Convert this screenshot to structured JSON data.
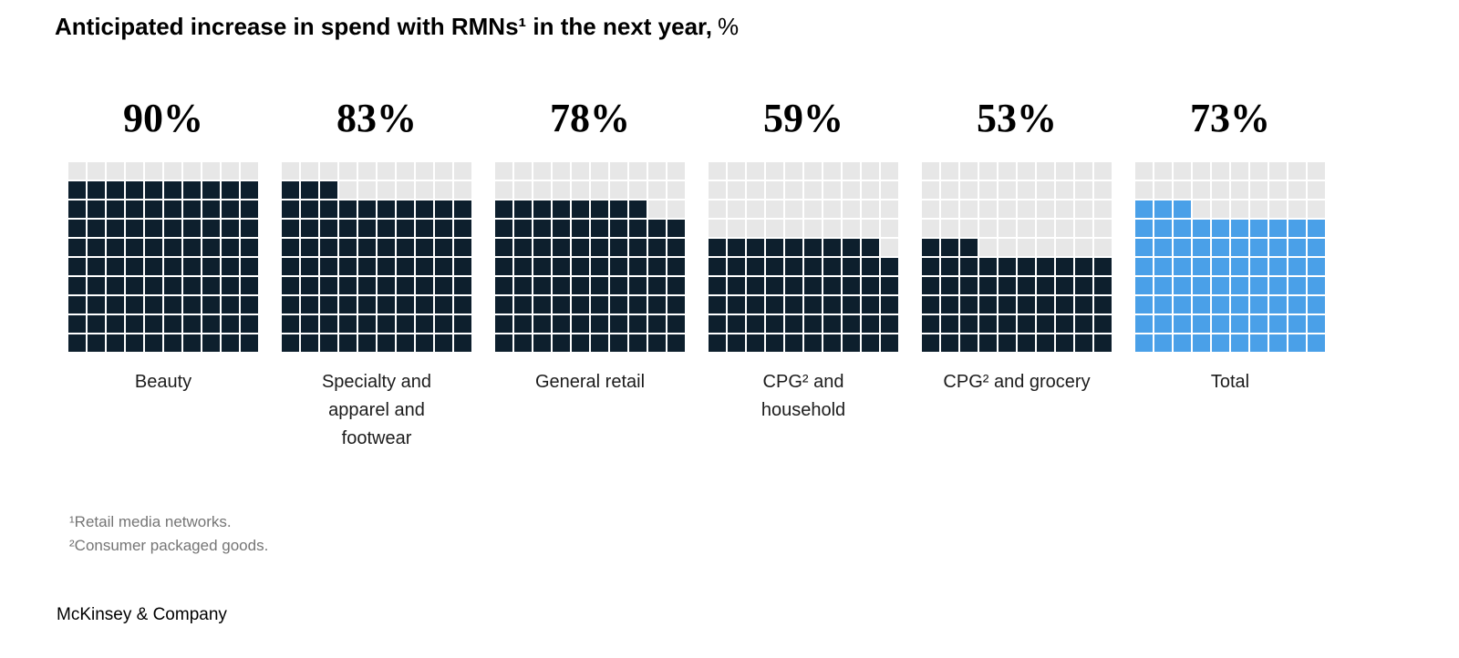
{
  "title": {
    "main": "Anticipated increase in spend with RMNs¹ in the next year,",
    "suffix": "%"
  },
  "chart_data": {
    "type": "waffle",
    "title": "Anticipated increase in spend with RMNs in the next year, %",
    "grid": {
      "rows": 10,
      "cols": 10,
      "cell_value": 1,
      "max": 100
    },
    "categories": [
      "Beauty",
      "Specialty and apparel and footwear",
      "General retail",
      "CPG² and household",
      "CPG² and grocery",
      "Total"
    ],
    "values": [
      90,
      83,
      78,
      59,
      53,
      73
    ],
    "value_labels": [
      "90%",
      "83%",
      "78%",
      "59%",
      "53%",
      "73%"
    ],
    "colors": {
      "filled": "#0d1f2d",
      "filled_total": "#4aa0e8",
      "empty": "#e7e7e7"
    },
    "fill_direction": "bottom-up, partial row fills left-to-right"
  },
  "footnotes": [
    "¹Retail media networks.",
    "²Consumer packaged goods."
  ],
  "source_logo": "McKinsey & Company"
}
